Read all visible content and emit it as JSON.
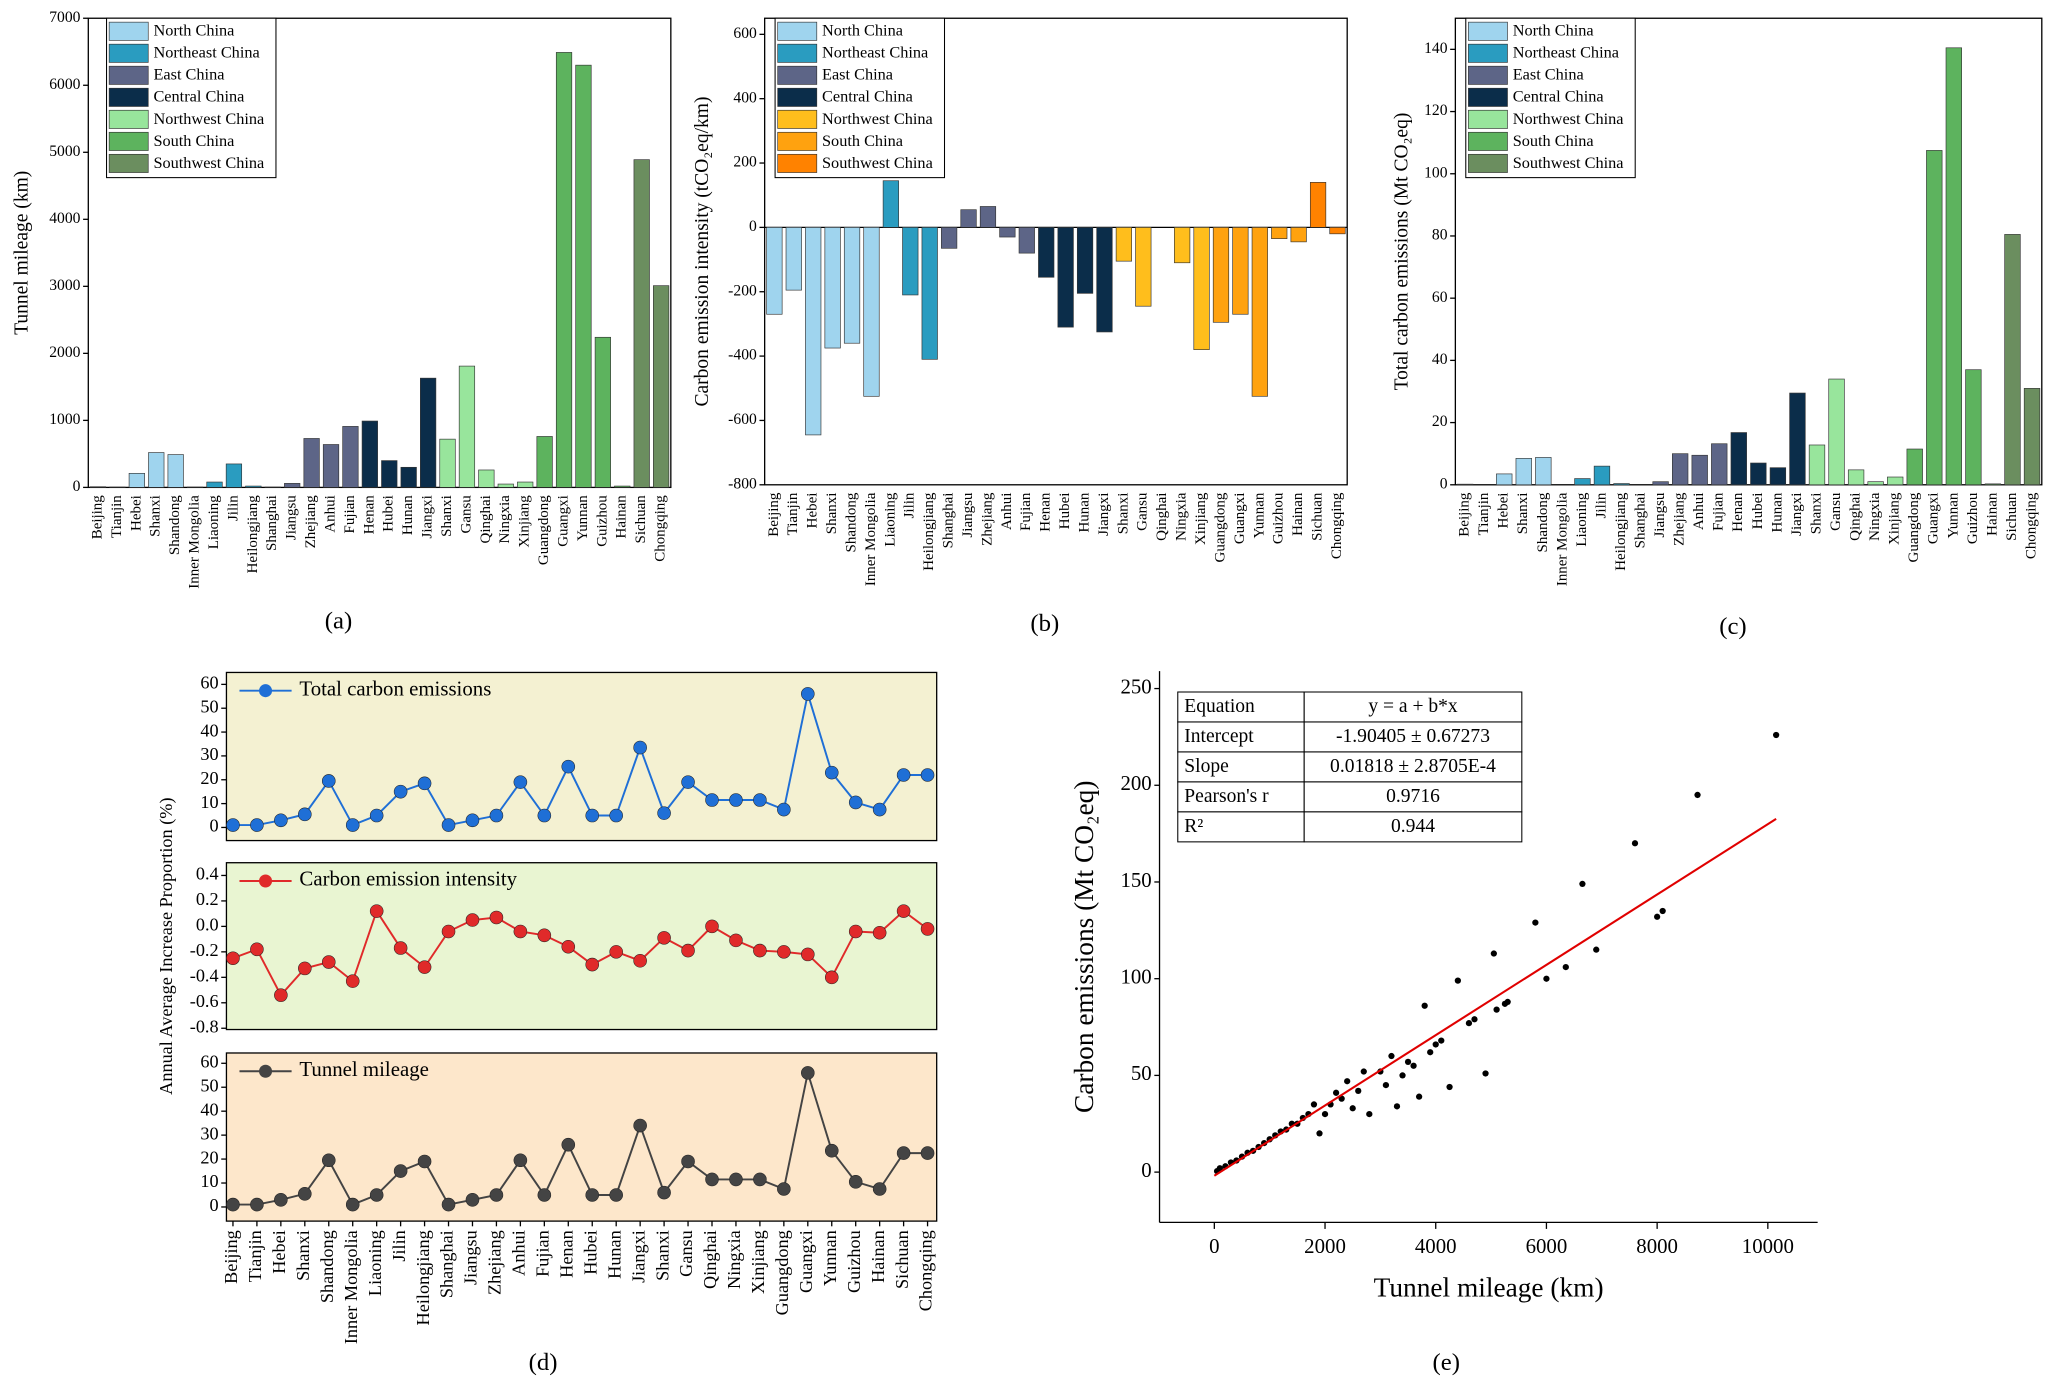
{
  "chart_data": [
    {
      "type": "bar",
      "ylabel": "Tunnel mileage (km)",
      "caption": "(a)",
      "categories": [
        "Beijing",
        "Tianjin",
        "Hebei",
        "Shanxi",
        "Shandong",
        "Inner Mongolia",
        "Liaoning",
        "Jilin",
        "Heilongjiang",
        "Shanghai",
        "Jiangsu",
        "Zhejiang",
        "Anhui",
        "Fujian",
        "Henan",
        "Hubei",
        "Hunan",
        "Jiangxi",
        "Shanxi",
        "Gansu",
        "Qinghai",
        "Ningxia",
        "Xinjiang",
        "Guangdong",
        "Guangxi",
        "Yunnan",
        "Guizhou",
        "Hainan",
        "Sichuan",
        "Chongqing"
      ],
      "values": [
        10,
        5,
        210,
        520,
        490,
        5,
        80,
        350,
        20,
        5,
        60,
        730,
        640,
        910,
        990,
        400,
        300,
        1630,
        720,
        1810,
        260,
        50,
        80,
        760,
        6490,
        6300,
        2240,
        20,
        4890,
        3010
      ],
      "colors": [
        "#9fd4ee",
        "#9fd4ee",
        "#9fd4ee",
        "#9fd4ee",
        "#9fd4ee",
        "#9fd4ee",
        "#2a9cc0",
        "#2a9cc0",
        "#2a9cc0",
        "#5d6587",
        "#5d6587",
        "#5d6587",
        "#5d6587",
        "#5d6587",
        "#0b2d4a",
        "#0b2d4a",
        "#0b2d4a",
        "#0b2d4a",
        "#98e59c",
        "#98e59c",
        "#98e59c",
        "#98e59c",
        "#98e59c",
        "#5db35e",
        "#5db35e",
        "#5db35e",
        "#5db35e",
        "#5db35e",
        "#6b8e5f",
        "#6b8e5f"
      ],
      "legend": [
        {
          "name": "North China",
          "color": "#9fd4ee"
        },
        {
          "name": "Northeast China",
          "color": "#2a9cc0"
        },
        {
          "name": "East China",
          "color": "#5d6587"
        },
        {
          "name": "Central China",
          "color": "#0b2d4a"
        },
        {
          "name": "Northwest China",
          "color": "#98e59c"
        },
        {
          "name": "South China",
          "color": "#5db35e"
        },
        {
          "name": "Southwest China",
          "color": "#6b8e5f"
        }
      ],
      "ylim": [
        0,
        7000
      ],
      "yticks": [
        0,
        1000,
        2000,
        3000,
        4000,
        5000,
        6000,
        7000
      ]
    },
    {
      "type": "bar",
      "ylabel": "Carbon emission intensity (tCO₂eq/km)",
      "caption": "(b)",
      "categories": [
        "Beijing",
        "Tianjin",
        "Hebei",
        "Shanxi",
        "Shandong",
        "Inner Mongolia",
        "Liaoning",
        "Jilin",
        "Heilongjiang",
        "Shanghai",
        "Jiangsu",
        "Zhejiang",
        "Anhui",
        "Fujian",
        "Henan",
        "Hubei",
        "Hunan",
        "Jiangxi",
        "Shanxi",
        "Gansu",
        "Qinghai",
        "Ningxia",
        "Xinjiang",
        "Guangdong",
        "Guangxi",
        "Yunnan",
        "Guizhou",
        "Hainan",
        "Sichuan",
        "Chongqing"
      ],
      "values": [
        -270,
        -195,
        -645,
        -375,
        -360,
        -525,
        145,
        -210,
        -410,
        -65,
        55,
        65,
        -30,
        -80,
        -155,
        -310,
        -205,
        -325,
        -105,
        -245,
        0,
        -110,
        -380,
        -295,
        -270,
        -525,
        -35,
        -45,
        140,
        -20
      ],
      "colors": [
        "#9fd4ee",
        "#9fd4ee",
        "#9fd4ee",
        "#9fd4ee",
        "#9fd4ee",
        "#9fd4ee",
        "#2a9cc0",
        "#2a9cc0",
        "#2a9cc0",
        "#5d6587",
        "#5d6587",
        "#5d6587",
        "#5d6587",
        "#5d6587",
        "#0b2d4a",
        "#0b2d4a",
        "#0b2d4a",
        "#0b2d4a",
        "#ffbe1c",
        "#ffbe1c",
        "#ffbe1c",
        "#ffbe1c",
        "#ffbe1c",
        "#ffa20f",
        "#ffa20f",
        "#ffa20f",
        "#ffa20f",
        "#ffa20f",
        "#ff8200",
        "#ff8200"
      ],
      "legend": [
        {
          "name": "North China",
          "color": "#9fd4ee"
        },
        {
          "name": "Northeast China",
          "color": "#2a9cc0"
        },
        {
          "name": "East China",
          "color": "#5d6587"
        },
        {
          "name": "Central China",
          "color": "#0b2d4a"
        },
        {
          "name": "Northwest China",
          "color": "#ffbe1c"
        },
        {
          "name": "South China",
          "color": "#ffa20f"
        },
        {
          "name": "Southwest China",
          "color": "#ff8200"
        }
      ],
      "ylim": [
        -800,
        650
      ],
      "yticks": [
        -800,
        -600,
        -400,
        -200,
        0,
        200,
        400,
        600
      ]
    },
    {
      "type": "bar",
      "ylabel": "Total carbon emissions (Mt CO₂eq)",
      "caption": "(c)",
      "categories": [
        "Beijing",
        "Tianjin",
        "Hebei",
        "Shanxi",
        "Shandong",
        "Inner Mongolia",
        "Liaoning",
        "Jilin",
        "Heilongjiang",
        "Shanghai",
        "Jiangsu",
        "Zhejiang",
        "Anhui",
        "Fujian",
        "Henan",
        "Hubei",
        "Hunan",
        "Jiangxi",
        "Shanxi",
        "Gansu",
        "Qinghai",
        "Ningxia",
        "Xinjiang",
        "Guangdong",
        "Guangxi",
        "Yunnan",
        "Guizhou",
        "Hainan",
        "Sichuan",
        "Chongqing"
      ],
      "values": [
        0.2,
        0,
        3.5,
        8.5,
        8.8,
        0,
        2,
        6,
        0.4,
        0,
        1,
        10,
        9.5,
        13.2,
        16.8,
        7,
        5.5,
        29.5,
        12.8,
        34,
        4.8,
        1,
        2.5,
        11.5,
        107.5,
        140.5,
        37,
        0.3,
        80.5,
        31
      ],
      "colors": [
        "#9fd4ee",
        "#9fd4ee",
        "#9fd4ee",
        "#9fd4ee",
        "#9fd4ee",
        "#9fd4ee",
        "#2a9cc0",
        "#2a9cc0",
        "#2a9cc0",
        "#5d6587",
        "#5d6587",
        "#5d6587",
        "#5d6587",
        "#5d6587",
        "#0b2d4a",
        "#0b2d4a",
        "#0b2d4a",
        "#0b2d4a",
        "#98e59c",
        "#98e59c",
        "#98e59c",
        "#98e59c",
        "#98e59c",
        "#5db35e",
        "#5db35e",
        "#5db35e",
        "#5db35e",
        "#5db35e",
        "#6b8e5f",
        "#6b8e5f"
      ],
      "legend": [
        {
          "name": "North China",
          "color": "#9fd4ee"
        },
        {
          "name": "Northeast China",
          "color": "#2a9cc0"
        },
        {
          "name": "East China",
          "color": "#5d6587"
        },
        {
          "name": "Central China",
          "color": "#0b2d4a"
        },
        {
          "name": "Northwest China",
          "color": "#98e59c"
        },
        {
          "name": "South China",
          "color": "#5db35e"
        },
        {
          "name": "Southwest China",
          "color": "#6b8e5f"
        }
      ],
      "ylim": [
        0,
        150
      ],
      "yticks": [
        0,
        20,
        40,
        60,
        80,
        100,
        120,
        140
      ]
    },
    {
      "type": "line",
      "background": "#f4f1d2",
      "series": [
        {
          "name": "Total carbon emissions",
          "color": "#1f6fd6",
          "values": [
            1,
            1,
            3,
            5.5,
            19.5,
            1,
            5,
            15,
            18.5,
            1,
            3,
            5,
            19,
            5,
            25.5,
            5,
            5,
            33.5,
            6,
            19,
            11.5,
            11.5,
            11.5,
            7.5,
            56,
            23,
            10.5,
            7.5,
            22,
            22
          ]
        }
      ],
      "ylim": [
        -5.5,
        65
      ],
      "yticks": [
        0,
        10,
        20,
        30,
        40,
        50,
        60
      ]
    },
    {
      "type": "line",
      "background": "#e9f5d2",
      "ylabel": "Annual Average Increase Proportion (%)",
      "series": [
        {
          "name": "Carbon emission intensity",
          "color": "#e02a2a",
          "values": [
            -0.25,
            -0.18,
            -0.54,
            -0.33,
            -0.28,
            -0.43,
            0.12,
            -0.17,
            -0.32,
            -0.04,
            0.05,
            0.07,
            -0.04,
            -0.07,
            -0.16,
            -0.3,
            -0.2,
            -0.27,
            -0.09,
            -0.19,
            0,
            -0.11,
            -0.19,
            -0.2,
            -0.22,
            -0.4,
            -0.04,
            -0.05,
            0.12,
            -0.02
          ]
        }
      ],
      "ylim": [
        -0.81,
        0.5
      ],
      "yticks": [
        -0.8,
        -0.6,
        -0.4,
        -0.2,
        {
          "value": 0,
          "label": "0.0"
        },
        0.2,
        0.4
      ]
    },
    {
      "type": "line",
      "background": "#fde7cb",
      "caption": "(d)",
      "categories": [
        "Beijing",
        "Tianjin",
        "Hebei",
        "Shanxi",
        "Shandong",
        "Inner Mongolia",
        "Liaoning",
        "Jilin",
        "Heilongjiang",
        "Shanghai",
        "Jiangsu",
        "Zhejiang",
        "Anhui",
        "Fujian",
        "Henan",
        "Hubei",
        "Hunan",
        "Jiangxi",
        "Shanxi",
        "Gansu",
        "Qinghai",
        "Ningxia",
        "Xinjiang",
        "Guangdong",
        "Guangxi",
        "Yunnan",
        "Guizhou",
        "Hainan",
        "Sichuan",
        "Chongqing"
      ],
      "series": [
        {
          "name": "Tunnel mileage",
          "color": "#444444",
          "values": [
            1,
            1,
            3,
            5.5,
            19.5,
            1,
            5,
            15,
            19,
            1,
            3,
            5,
            19.5,
            5,
            26,
            5,
            5,
            34,
            6,
            19,
            11.5,
            11.5,
            11.5,
            7.5,
            56,
            23.5,
            10.5,
            7.5,
            22.5,
            22.5
          ]
        }
      ],
      "ylim": [
        -5.9,
        64.3
      ],
      "yticks": [
        0,
        10,
        20,
        30,
        40,
        50,
        60
      ]
    },
    {
      "type": "scatter",
      "xlabel": "Tunnel mileage (km)",
      "ylabel": "Carbon emissions (Mt CO₂eq)",
      "caption": "(e)",
      "color": "#000000",
      "x": [
        10150,
        8730,
        7600,
        6650,
        5800,
        8000,
        8100,
        6900,
        6000,
        6350,
        5050,
        4900,
        4250,
        4400,
        3800,
        5100,
        5250,
        5300,
        4600,
        4700,
        4000,
        3900,
        3700,
        3200,
        3500,
        3300,
        3000,
        2800,
        2700,
        2400,
        2200,
        1900,
        1800,
        2000,
        2500,
        1600,
        1500,
        1400,
        1300,
        1200,
        1100,
        1000,
        900,
        800,
        700,
        600,
        500,
        400,
        300,
        200,
        100,
        50,
        3100,
        3400,
        2600,
        2300,
        2100,
        1700,
        4100,
        3600
      ],
      "y": [
        226,
        195,
        170,
        149,
        129,
        132,
        135,
        115,
        100,
        106,
        113,
        51,
        44,
        99,
        86,
        84,
        87,
        88,
        77,
        79,
        66,
        62,
        39,
        60,
        57,
        34,
        52,
        30,
        52,
        47,
        41,
        20,
        35,
        30,
        33,
        28,
        25,
        25,
        22,
        21,
        19,
        17,
        15,
        13,
        11,
        10,
        8,
        6,
        5,
        3,
        2,
        0.5,
        45,
        50,
        42,
        38,
        35,
        30,
        68,
        55
      ],
      "fit": {
        "color": "#e00000",
        "x": [
          0,
          10150
        ],
        "y": [
          -1.9,
          182.6
        ]
      },
      "table": [
        [
          "Equation",
          "y = a + b*x"
        ],
        [
          "Intercept",
          "-1.90405 ± 0.67273"
        ],
        [
          "Slope",
          "0.01818 ± 2.8705E-4"
        ],
        [
          "Pearson's r",
          "0.9716"
        ],
        [
          "R²",
          "0.944"
        ]
      ],
      "xlim": [
        -990,
        10900
      ],
      "ylim": [
        -26,
        259
      ],
      "xticks": [
        0,
        2000,
        4000,
        6000,
        8000,
        10000
      ],
      "yticks": [
        0,
        50,
        100,
        150,
        200,
        250
      ]
    }
  ]
}
